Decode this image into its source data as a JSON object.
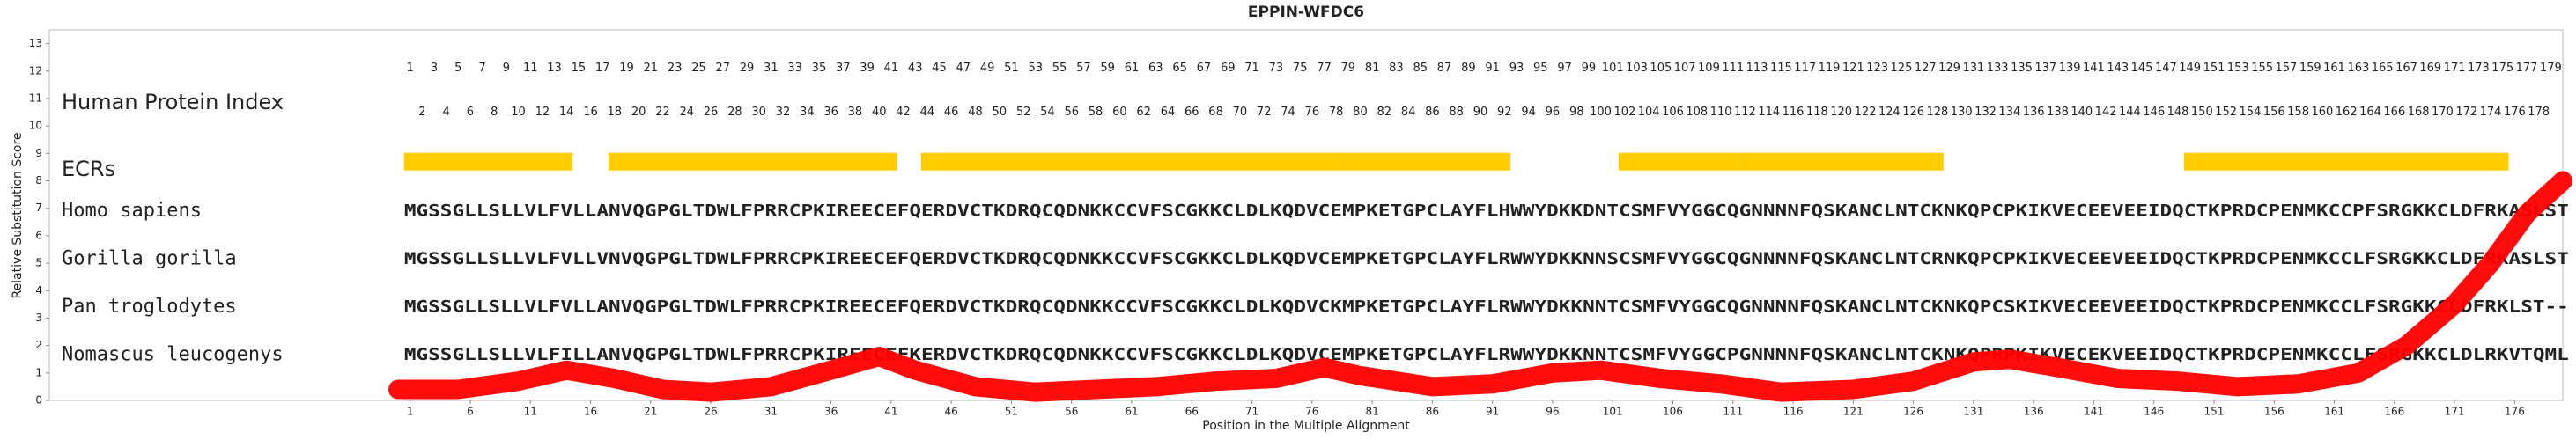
{
  "chart_data": {
    "type": "line",
    "title": "EPPIN-WFDC6",
    "x_label": "Position in the Multiple Alignment",
    "y_label": "Relative Substitution Score",
    "xlim": [
      -29,
      180
    ],
    "ylim": [
      0,
      13.5
    ],
    "xticks": [
      1,
      6,
      11,
      16,
      21,
      26,
      31,
      36,
      41,
      46,
      51,
      56,
      61,
      66,
      71,
      76,
      81,
      86,
      91,
      96,
      101,
      106,
      111,
      116,
      121,
      126,
      131,
      136,
      141,
      146,
      151,
      156,
      161,
      166,
      171,
      176
    ],
    "yticks": [
      0,
      1,
      2,
      3,
      4,
      5,
      6,
      7,
      8,
      9,
      10,
      11,
      12,
      13
    ],
    "index_label": "Human Protein Index",
    "protein_index": [
      1,
      2,
      3,
      4,
      5,
      6,
      7,
      8,
      9,
      10,
      11,
      12,
      13,
      14,
      15,
      16,
      17,
      18,
      19,
      20,
      21,
      22,
      23,
      24,
      25,
      26,
      27,
      28,
      29,
      30,
      31,
      32,
      33,
      34,
      35,
      36,
      37,
      38,
      39,
      40,
      41,
      42,
      43,
      44,
      45,
      46,
      47,
      48,
      49,
      50,
      51,
      52,
      53,
      54,
      55,
      56,
      57,
      58,
      59,
      60,
      61,
      62,
      63,
      64,
      65,
      66,
      67,
      68,
      69,
      70,
      71,
      72,
      73,
      74,
      75,
      76,
      77,
      78,
      79,
      80,
      81,
      82,
      83,
      84,
      85,
      86,
      87,
      88,
      89,
      90,
      91,
      92,
      93,
      94,
      95,
      96,
      97,
      98,
      99,
      100,
      101,
      102,
      103,
      104,
      105,
      106,
      107,
      108,
      109,
      110,
      111,
      112,
      113,
      114,
      115,
      116,
      117,
      118,
      119,
      120,
      121,
      122,
      123,
      124,
      125,
      126,
      127,
      128,
      129,
      130,
      131,
      132,
      133,
      134,
      135,
      136,
      137,
      138,
      139,
      140,
      141,
      142,
      143,
      144,
      145,
      146,
      147,
      148,
      149,
      150,
      151,
      152,
      153,
      154,
      155,
      156,
      157,
      158,
      159,
      160,
      161,
      162,
      163,
      164,
      165,
      166,
      167,
      168,
      169,
      170,
      171,
      172,
      173,
      174,
      175,
      176,
      177,
      178,
      179
    ],
    "ecr_label": "ECRs",
    "ecr_color": "#ffcc00",
    "ecrs": [
      [
        1,
        14
      ],
      [
        18,
        41
      ],
      [
        44,
        78
      ],
      [
        79,
        92
      ],
      [
        102,
        111
      ],
      [
        112,
        128
      ],
      [
        149,
        175
      ]
    ],
    "sequences": [
      {
        "name": "Homo sapiens",
        "color": "#1f3c96",
        "sequence": "MGSSGLLSLLVLFVLLANVQGPGLTDWLFPRRCPKIREECEFQERDVCTKDRQCQDNKKCCVFSCGKKCLDLKQDVCEMPKETGPCLAYFLHWWYDKKDNTCSMFVYGGCQGNNNNFQSKANCLNTCKNKQPCPKIKVECEEVEEIDQCTKPRDCPENMKCCPFSRGKKCLDFRKASLST"
      },
      {
        "name": "Gorilla gorilla",
        "color": "#1f3c96",
        "sequence": "MGSSGLLSLLVLFVLLVNVQGPGLTDWLFPRRCPKIREECEFQERDVCTKDRQCQDNKKCCVFSCGKKCLDLKQDVCEMPKETGPCLAYFLRWWYDKKNNSCSMFVYGGCQGNNNNFQSKANCLNTCRNKQPCPKIKVECEEVEEIDQCTKPRDCPENMKCCLFSRGKKCLDFRKASLST"
      },
      {
        "name": "Pan troglodytes",
        "color": "#1f3c96",
        "sequence": "MGSSGLLSLLVLFVLLANVQGPGLTDWLFPRRCPKIREECEFQERDVCTKDRQCQDNKKCCVFSCGKKCLDLKQDVCKMPKETGPCLAYFLRWWYDKKNNTCSMFVYGGCQGNNNNFQSKANCLNTCKNKQPCSKIKVECEEVEEIDQCTKPRDCPENMKCCLFSRGKKCLDFRKLST--"
      },
      {
        "name": "Nomascus leucogenys",
        "color": "#1f3c96",
        "sequence": "MGSSGLLSLLVLFILLANVQGPGLTDWLFPRRCPKIREECEFKERDVCTKDRQCQDNKKCCVFSCGKKCLDLKQDVCEMPKETGPCLAYFLRWWYDKKNNTCSMFVYGGCPGNNNNFQSKANCLNTCKNKQPRPKIKVECEKVEEIDQCTKPRDCPENMKCCLFSRGKKCLDLRKVTQML"
      }
    ],
    "line_color": "#ff0000",
    "x": [
      0,
      5,
      10,
      14,
      18,
      22,
      26,
      31,
      36,
      40,
      43,
      48,
      53,
      58,
      63,
      68,
      73,
      77,
      80,
      86,
      91,
      96,
      100,
      105,
      110,
      115,
      121,
      126,
      131,
      134,
      138,
      143,
      148,
      153,
      158,
      163,
      167,
      171,
      174,
      177,
      180
    ],
    "values": [
      0.4,
      0.4,
      0.7,
      1.1,
      0.8,
      0.4,
      0.3,
      0.5,
      1.1,
      1.6,
      1.1,
      0.5,
      0.3,
      0.4,
      0.5,
      0.7,
      0.8,
      1.2,
      0.9,
      0.5,
      0.6,
      1.0,
      1.1,
      0.8,
      0.6,
      0.3,
      0.4,
      0.7,
      1.4,
      1.5,
      1.2,
      0.8,
      0.7,
      0.5,
      0.6,
      1.0,
      2.0,
      3.5,
      5.0,
      6.8,
      8.0
    ]
  }
}
